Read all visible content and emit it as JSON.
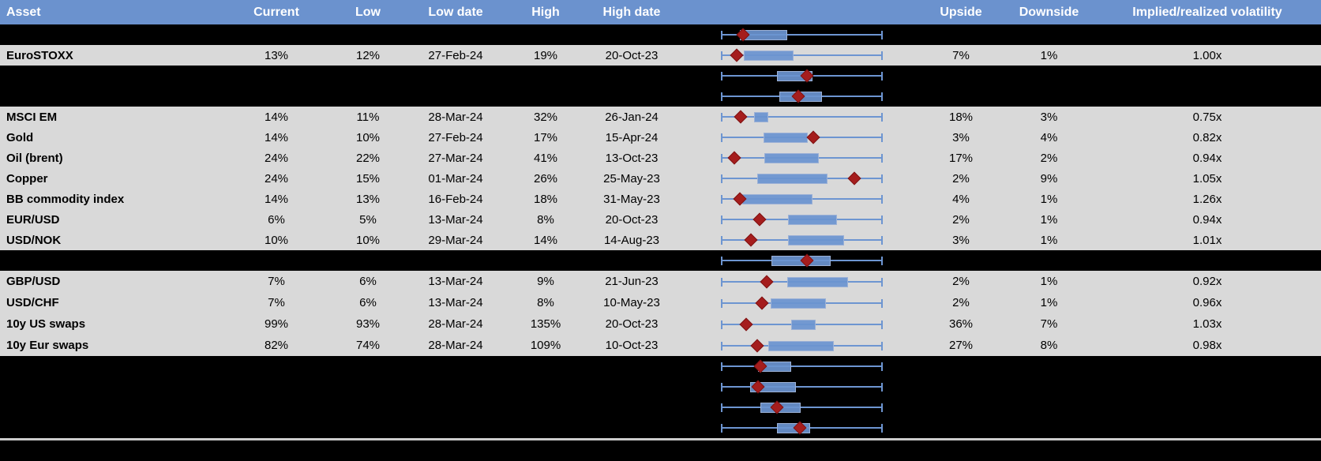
{
  "table": {
    "columns": [
      {
        "key": "asset",
        "label": "Asset",
        "align": "left"
      },
      {
        "key": "current",
        "label": "Current",
        "align": "center"
      },
      {
        "key": "low",
        "label": "Low",
        "align": "center"
      },
      {
        "key": "low_date",
        "label": "Low date",
        "align": "center"
      },
      {
        "key": "high",
        "label": "High",
        "align": "center"
      },
      {
        "key": "high_date",
        "label": "High date",
        "align": "center"
      },
      {
        "key": "chart",
        "label": "",
        "align": "center"
      },
      {
        "key": "upside",
        "label": "Upside",
        "align": "center"
      },
      {
        "key": "downside",
        "label": "Downside",
        "align": "center"
      },
      {
        "key": "impl",
        "label": "Implied/realized volatility",
        "align": "center"
      }
    ],
    "rows": [
      {
        "type": "hidden",
        "plot": {
          "whisker": [
            0,
            1
          ],
          "box": [
            0.115,
            0.41
          ],
          "marker": 0.137
        }
      },
      {
        "type": "data",
        "asset": "EuroSTOXX",
        "current": "13%",
        "low": "12%",
        "low_date": "27-Feb-24",
        "high": "19%",
        "high_date": "20-Oct-23",
        "upside": "7%",
        "downside": "1%",
        "impl": "1.00x",
        "plot": {
          "whisker": [
            0,
            1
          ],
          "box": [
            0.142,
            0.447
          ],
          "marker": 0.096
        }
      },
      {
        "type": "hidden",
        "plot": {
          "whisker": [
            0,
            1
          ],
          "box": [
            0.345,
            0.565
          ],
          "marker": 0.534
        }
      },
      {
        "type": "hidden",
        "plot": {
          "whisker": [
            0,
            1
          ],
          "box": [
            0.362,
            0.622
          ],
          "marker": 0.48
        }
      },
      {
        "type": "data",
        "asset": "MSCI EM",
        "current": "14%",
        "low": "11%",
        "low_date": "28-Mar-24",
        "high": "32%",
        "high_date": "26-Jan-24",
        "upside": "18%",
        "downside": "3%",
        "impl": "0.75x",
        "plot": {
          "whisker": [
            0,
            1
          ],
          "box": [
            0.204,
            0.295
          ],
          "marker": 0.122
        }
      },
      {
        "type": "data",
        "asset": "Gold",
        "current": "14%",
        "low": "10%",
        "low_date": "27-Feb-24",
        "high": "17%",
        "high_date": "15-Apr-24",
        "upside": "3%",
        "downside": "4%",
        "impl": "0.82x",
        "plot": {
          "whisker": [
            0,
            1
          ],
          "box": [
            0.264,
            0.536
          ],
          "marker": 0.573
        }
      },
      {
        "type": "data",
        "asset": "Oil (brent)",
        "current": "24%",
        "low": "22%",
        "low_date": "27-Mar-24",
        "high": "41%",
        "high_date": "13-Oct-23",
        "upside": "17%",
        "downside": "2%",
        "impl": "0.94x",
        "plot": {
          "whisker": [
            0,
            1
          ],
          "box": [
            0.267,
            0.604
          ],
          "marker": 0.085
        }
      },
      {
        "type": "data",
        "asset": "Copper",
        "current": "24%",
        "low": "15%",
        "low_date": "01-Mar-24",
        "high": "26%",
        "high_date": "25-May-23",
        "upside": "2%",
        "downside": "9%",
        "impl": "1.05x",
        "plot": {
          "whisker": [
            0,
            1
          ],
          "box": [
            0.223,
            0.659
          ],
          "marker": 0.825
        }
      },
      {
        "type": "data",
        "asset": "BB commodity index",
        "current": "14%",
        "low": "13%",
        "low_date": "16-Feb-24",
        "high": "18%",
        "high_date": "31-May-23",
        "upside": "4%",
        "downside": "1%",
        "impl": "1.26x",
        "plot": {
          "whisker": [
            0,
            1
          ],
          "box": [
            0.133,
            0.564
          ],
          "marker": 0.117
        }
      },
      {
        "type": "data",
        "asset": "EUR/USD",
        "current": "6%",
        "low": "5%",
        "low_date": "13-Mar-24",
        "high": "8%",
        "high_date": "20-Oct-23",
        "upside": "2%",
        "downside": "1%",
        "impl": "0.94x",
        "plot": {
          "whisker": [
            0,
            1
          ],
          "box": [
            0.415,
            0.718
          ],
          "marker": 0.239
        }
      },
      {
        "type": "data",
        "asset": "USD/NOK",
        "current": "10%",
        "low": "10%",
        "low_date": "29-Mar-24",
        "high": "14%",
        "high_date": "14-Aug-23",
        "upside": "3%",
        "downside": "1%",
        "impl": "1.01x",
        "plot": {
          "whisker": [
            0,
            1
          ],
          "box": [
            0.415,
            0.759
          ],
          "marker": 0.185
        }
      },
      {
        "type": "hidden",
        "plot": {
          "whisker": [
            0,
            1
          ],
          "box": [
            0.312,
            0.678
          ],
          "marker": 0.532
        }
      },
      {
        "type": "data",
        "asset": "GBP/USD",
        "current": "7%",
        "low": "6%",
        "low_date": "13-Mar-24",
        "high": "9%",
        "high_date": "21-Jun-23",
        "upside": "2%",
        "downside": "1%",
        "impl": "0.92x",
        "plot": {
          "whisker": [
            0,
            1
          ],
          "box": [
            0.41,
            0.784
          ],
          "marker": 0.283
        }
      },
      {
        "type": "data",
        "asset": "USD/CHF",
        "current": "7%",
        "low": "6%",
        "low_date": "13-Mar-24",
        "high": "8%",
        "high_date": "10-May-23",
        "upside": "2%",
        "downside": "1%",
        "impl": "0.96x",
        "plot": {
          "whisker": [
            0,
            1
          ],
          "box": [
            0.309,
            0.648
          ],
          "marker": 0.255
        }
      },
      {
        "type": "data",
        "asset": "10y US swaps",
        "current": "99%",
        "low": "93%",
        "low_date": "28-Mar-24",
        "high": "135%",
        "high_date": "20-Oct-23",
        "upside": "36%",
        "downside": "7%",
        "impl": "1.03x",
        "plot": {
          "whisker": [
            0,
            1
          ],
          "box": [
            0.435,
            0.585
          ],
          "marker": 0.158
        }
      },
      {
        "type": "data",
        "asset": "10y Eur swaps",
        "current": "82%",
        "low": "74%",
        "low_date": "28-Mar-24",
        "high": "109%",
        "high_date": "10-Oct-23",
        "upside": "27%",
        "downside": "8%",
        "impl": "0.98x",
        "plot": {
          "whisker": [
            0,
            1
          ],
          "box": [
            0.293,
            0.699
          ],
          "marker": 0.223
        }
      },
      {
        "type": "hidden",
        "plot": {
          "whisker": [
            0,
            1
          ],
          "box": [
            0.231,
            0.435
          ],
          "marker": 0.242
        }
      },
      {
        "type": "hidden",
        "plot": {
          "whisker": [
            0,
            1
          ],
          "box": [
            0.182,
            0.464
          ],
          "marker": 0.231
        }
      },
      {
        "type": "hidden",
        "plot": {
          "whisker": [
            0,
            1
          ],
          "box": [
            0.244,
            0.495
          ],
          "marker": 0.345
        }
      },
      {
        "type": "hidden",
        "plot": {
          "whisker": [
            0,
            1
          ],
          "box": [
            0.345,
            0.549
          ],
          "marker": 0.489
        }
      },
      {
        "type": "divider"
      },
      {
        "type": "filler"
      }
    ]
  },
  "colors": {
    "header_bg": "#6b92ce",
    "header_text": "#ffffff",
    "row_gray": "#d9d9d9",
    "row_black": "#000000",
    "box_fill": "#6a93d0",
    "box_border": "#9cb1d6",
    "whisker": "#6d95d1",
    "marker_red": "#a51d1d",
    "divider_gray": "#cbcbcb"
  }
}
